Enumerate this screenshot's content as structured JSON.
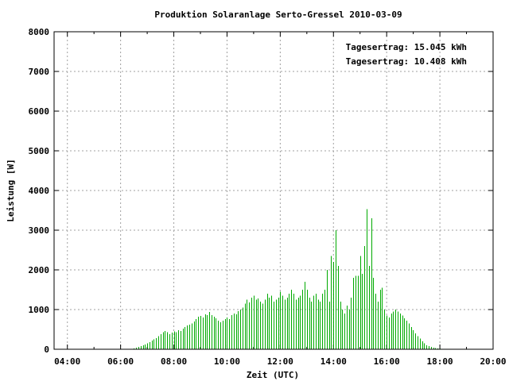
{
  "chart_data": {
    "type": "bar",
    "title": "Produktion Solaranlage Serto-Gressel 2010-03-09",
    "xlabel": "Zeit (UTC)",
    "ylabel": "Leistung [W]",
    "xlim": [
      3.5,
      20.0
    ],
    "ylim": [
      0,
      8000
    ],
    "xticks": [
      "04:00",
      "06:00",
      "08:00",
      "10:00",
      "12:00",
      "14:00",
      "16:00",
      "18:00",
      "20:00"
    ],
    "yticks": [
      "0",
      "1000",
      "2000",
      "3000",
      "4000",
      "5000",
      "6000",
      "7000",
      "8000"
    ],
    "grid": true,
    "annotations": [
      {
        "text": "Tagesertrag: 15.045 kWh",
        "color": "#cc0000"
      },
      {
        "text": "Tagesertrag: 10.408 kWh",
        "color": "#00aa00"
      }
    ],
    "series": [
      {
        "color": "#00aa00",
        "x_start_hours": 6.5,
        "x_step_hours": 0.0833,
        "values": [
          20,
          40,
          60,
          80,
          100,
          120,
          150,
          180,
          220,
          250,
          280,
          330,
          380,
          430,
          460,
          430,
          380,
          420,
          450,
          430,
          480,
          460,
          520,
          560,
          600,
          620,
          650,
          700,
          760,
          820,
          840,
          800,
          880,
          860,
          940,
          860,
          820,
          780,
          720,
          680,
          720,
          760,
          800,
          760,
          860,
          900,
          880,
          960,
          1000,
          1050,
          1150,
          1250,
          1180,
          1300,
          1350,
          1250,
          1280,
          1200,
          1150,
          1250,
          1400,
          1300,
          1350,
          1200,
          1250,
          1300,
          1450,
          1350,
          1250,
          1300,
          1400,
          1500,
          1400,
          1250,
          1300,
          1350,
          1500,
          1700,
          1500,
          1300,
          1200,
          1350,
          1400,
          1250,
          1200,
          1400,
          1500,
          2000,
          1200,
          2350,
          2200,
          3000,
          2100,
          1200,
          1000,
          900,
          1100,
          1000,
          1300,
          1800,
          1850,
          1850,
          2350,
          1900,
          2600,
          3530,
          2100,
          3300,
          1800,
          1400,
          1200,
          1500,
          1550,
          1000,
          850,
          800,
          900,
          950,
          1000,
          950,
          900,
          850,
          780,
          720,
          650,
          560,
          480,
          400,
          330,
          270,
          200,
          150,
          100,
          80,
          60,
          40,
          30,
          20,
          15
        ]
      }
    ]
  }
}
